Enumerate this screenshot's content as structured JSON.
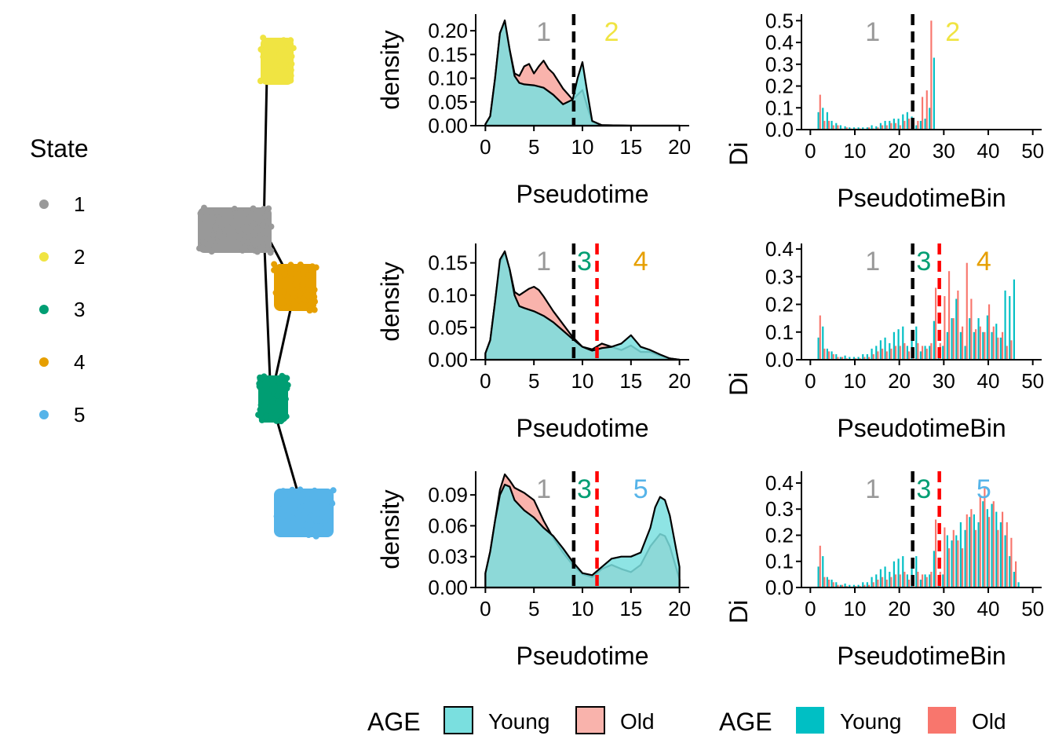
{
  "colors": {
    "young_fill": "#7ADFDF",
    "old_fill": "#F9B3AC",
    "young_bar": "#00BFC4",
    "old_bar": "#F8766D",
    "state_1": "#999999",
    "state_2": "#F0E442",
    "state_3": "#009E73",
    "state_4": "#E69F00",
    "state_5": "#56B4E9",
    "cut_black": "#000000",
    "cut_red": "#FF0000"
  },
  "state_legend": {
    "title": "State",
    "items": [
      {
        "label": "1",
        "color": "#999999"
      },
      {
        "label": "2",
        "color": "#F0E442"
      },
      {
        "label": "3",
        "color": "#009E73"
      },
      {
        "label": "4",
        "color": "#E69F00"
      },
      {
        "label": "5",
        "color": "#56B4E9"
      }
    ]
  },
  "density_legend": {
    "title": "AGE",
    "items": [
      "Young",
      "Old"
    ]
  },
  "bar_legend": {
    "title": "AGE",
    "items": [
      "Young",
      "Old"
    ]
  },
  "chart_data": [
    {
      "type": "scatter",
      "description": "trajectory tree of cells coloured by State",
      "legend_title": "State",
      "states": [
        "1",
        "2",
        "3",
        "4",
        "5"
      ],
      "legend_position": "left"
    },
    {
      "type": "area",
      "xlabel": "Pseudotime",
      "ylabel": "density",
      "xlim": [
        -1,
        21
      ],
      "ylim": [
        0,
        0.235
      ],
      "xticks": [
        0,
        5,
        10,
        15,
        20
      ],
      "yticks": [
        0,
        0.05,
        0.1,
        0.15,
        0.2
      ],
      "ytick_labels": [
        "0.00",
        "0.05",
        "0.10",
        "0.15",
        "0.20"
      ],
      "vlines": [
        {
          "x": 9.1,
          "color": "black"
        }
      ],
      "region_labels": [
        {
          "text": "1",
          "x": 6,
          "color": "#999999"
        },
        {
          "text": "2",
          "x": 13,
          "color": "#F0E442"
        }
      ],
      "series": [
        {
          "name": "Young",
          "x": [
            0,
            0.5,
            1,
            1.5,
            2,
            2.5,
            3,
            3.5,
            4,
            5,
            6,
            7,
            8,
            9,
            9.5,
            10,
            10.5,
            11,
            12,
            15,
            20
          ],
          "y": [
            0.003,
            0.02,
            0.1,
            0.195,
            0.222,
            0.16,
            0.105,
            0.09,
            0.087,
            0.085,
            0.08,
            0.065,
            0.045,
            0.055,
            0.1,
            0.134,
            0.07,
            0.01,
            0.001,
            0,
            0
          ]
        },
        {
          "name": "Old",
          "x": [
            0,
            0.5,
            1,
            1.5,
            2,
            2.5,
            3,
            3.5,
            4,
            4.5,
            5,
            5.5,
            6,
            6.5,
            7,
            8,
            9,
            9.5,
            10,
            10.5,
            11,
            12,
            15,
            20
          ],
          "y": [
            0.003,
            0.02,
            0.1,
            0.195,
            0.218,
            0.16,
            0.11,
            0.105,
            0.125,
            0.13,
            0.11,
            0.125,
            0.137,
            0.12,
            0.11,
            0.078,
            0.055,
            0.065,
            0.075,
            0.04,
            0.008,
            0.001,
            0,
            0
          ]
        }
      ]
    },
    {
      "type": "area",
      "xlabel": "Pseudotime",
      "ylabel": "density",
      "xlim": [
        -1,
        21
      ],
      "ylim": [
        0,
        0.18
      ],
      "xticks": [
        0,
        5,
        10,
        15,
        20
      ],
      "yticks": [
        0,
        0.05,
        0.1,
        0.15
      ],
      "ytick_labels": [
        "0.00",
        "0.05",
        "0.10",
        "0.15"
      ],
      "vlines": [
        {
          "x": 9.1,
          "color": "black"
        },
        {
          "x": 11.5,
          "color": "red"
        }
      ],
      "region_labels": [
        {
          "text": "1",
          "x": 6,
          "color": "#999999"
        },
        {
          "text": "3",
          "x": 10.2,
          "color": "#009E73"
        },
        {
          "text": "4",
          "x": 16,
          "color": "#E69F00"
        }
      ],
      "series": [
        {
          "name": "Young",
          "x": [
            0,
            0.5,
            1,
            1.5,
            2,
            2.5,
            3,
            3.5,
            4,
            5,
            6,
            7,
            8,
            9,
            10,
            11,
            12,
            13,
            14,
            15,
            16,
            17,
            18,
            19,
            20
          ],
          "y": [
            0.01,
            0.03,
            0.09,
            0.155,
            0.168,
            0.14,
            0.1,
            0.083,
            0.08,
            0.075,
            0.068,
            0.058,
            0.045,
            0.032,
            0.02,
            0.014,
            0.018,
            0.02,
            0.025,
            0.038,
            0.02,
            0.015,
            0.008,
            0.002,
            0
          ]
        },
        {
          "name": "Old",
          "x": [
            0,
            0.5,
            1,
            1.5,
            2,
            2.5,
            3,
            3.5,
            4,
            4.5,
            5,
            5.5,
            6,
            7,
            8,
            9,
            10,
            11,
            12,
            13,
            14,
            15,
            16,
            17,
            18,
            19,
            20
          ],
          "y": [
            0.01,
            0.03,
            0.09,
            0.15,
            0.165,
            0.14,
            0.105,
            0.1,
            0.105,
            0.11,
            0.113,
            0.108,
            0.098,
            0.075,
            0.055,
            0.035,
            0.02,
            0.016,
            0.025,
            0.02,
            0.015,
            0.022,
            0.012,
            0.012,
            0.006,
            0.002,
            0
          ]
        }
      ]
    },
    {
      "type": "area",
      "xlabel": "Pseudotime",
      "ylabel": "density",
      "xlim": [
        -1,
        21
      ],
      "ylim": [
        0,
        0.113
      ],
      "xticks": [
        0,
        5,
        10,
        15,
        20
      ],
      "yticks": [
        0,
        0.03,
        0.06,
        0.09
      ],
      "ytick_labels": [
        "0.00",
        "0.03",
        "0.06",
        "0.09"
      ],
      "vlines": [
        {
          "x": 9.1,
          "color": "black"
        },
        {
          "x": 11.5,
          "color": "red"
        }
      ],
      "region_labels": [
        {
          "text": "1",
          "x": 6,
          "color": "#999999"
        },
        {
          "text": "3",
          "x": 10.2,
          "color": "#009E73"
        },
        {
          "text": "5",
          "x": 16,
          "color": "#56B4E9"
        }
      ],
      "series": [
        {
          "name": "Young",
          "x": [
            0,
            0.5,
            1,
            1.5,
            2,
            2.5,
            3,
            4,
            5,
            6,
            7,
            8,
            9,
            10,
            11,
            12,
            13,
            14,
            15,
            16,
            17,
            17.5,
            18,
            18.5,
            19,
            20
          ],
          "y": [
            0.014,
            0.035,
            0.065,
            0.09,
            0.1,
            0.098,
            0.085,
            0.075,
            0.068,
            0.058,
            0.05,
            0.038,
            0.025,
            0.014,
            0.012,
            0.02,
            0.028,
            0.03,
            0.03,
            0.034,
            0.058,
            0.078,
            0.088,
            0.085,
            0.07,
            0.02
          ]
        },
        {
          "name": "Old",
          "x": [
            0,
            0.5,
            1,
            1.5,
            2,
            2.5,
            3,
            4,
            5,
            6,
            7,
            8,
            9,
            10,
            11,
            12,
            13,
            14,
            15,
            16,
            17,
            18,
            18.5,
            19,
            20
          ],
          "y": [
            0.014,
            0.035,
            0.065,
            0.095,
            0.11,
            0.104,
            0.097,
            0.092,
            0.085,
            0.065,
            0.048,
            0.034,
            0.022,
            0.013,
            0.01,
            0.018,
            0.022,
            0.018,
            0.015,
            0.022,
            0.04,
            0.052,
            0.05,
            0.04,
            0.008
          ]
        }
      ]
    },
    {
      "type": "bar",
      "xlabel": "PseudotimeBin",
      "ylabel": "Div/cells in bin",
      "xlim": [
        -2,
        52
      ],
      "ylim": [
        0,
        0.53
      ],
      "xticks": [
        0,
        10,
        20,
        30,
        40,
        50
      ],
      "yticks": [
        0,
        0.1,
        0.2,
        0.3,
        0.4,
        0.5
      ],
      "ytick_labels": [
        "0.0",
        "0.1",
        "0.2",
        "0.3",
        "0.4",
        "0.5"
      ],
      "vlines": [
        {
          "x": 23,
          "color": "black"
        }
      ],
      "region_labels": [
        {
          "text": "1",
          "x": 14,
          "color": "#999999"
        },
        {
          "text": "2",
          "x": 32,
          "color": "#F0E442"
        }
      ],
      "bins": [
        2,
        3,
        4,
        5,
        6,
        7,
        8,
        9,
        10,
        11,
        12,
        13,
        14,
        15,
        16,
        17,
        18,
        19,
        20,
        21,
        22,
        23,
        24,
        25,
        26,
        27,
        28
      ],
      "series": [
        {
          "name": "Young",
          "values": [
            0.08,
            0.1,
            0.08,
            0.04,
            0.03,
            0.02,
            0.015,
            0.01,
            0.01,
            0.01,
            0.01,
            0.01,
            0.02,
            0.015,
            0.03,
            0.04,
            0.04,
            0.05,
            0.05,
            0.07,
            0.08,
            0.06,
            0.02,
            0.04,
            0.05,
            0.1,
            0.33
          ]
        },
        {
          "name": "Old",
          "values": [
            0.16,
            0.04,
            0.04,
            0.02,
            0.02,
            0.005,
            0.01,
            0.005,
            0.005,
            0.005,
            0,
            0.01,
            0.005,
            0.01,
            0.02,
            0.02,
            0.03,
            0.03,
            0.02,
            0.04,
            0.05,
            0.03,
            0.04,
            0.15,
            0.18,
            0.5,
            0
          ]
        }
      ]
    },
    {
      "type": "bar",
      "xlabel": "PseudotimeBin",
      "ylabel": "Div/cells in bin",
      "xlim": [
        -2,
        52
      ],
      "ylim": [
        0,
        0.42
      ],
      "xticks": [
        0,
        10,
        20,
        30,
        40,
        50
      ],
      "yticks": [
        0,
        0.1,
        0.2,
        0.3,
        0.4
      ],
      "ytick_labels": [
        "0.0",
        "0.1",
        "0.2",
        "0.3",
        "0.4"
      ],
      "vlines": [
        {
          "x": 23,
          "color": "black"
        },
        {
          "x": 29,
          "color": "red"
        }
      ],
      "region_labels": [
        {
          "text": "1",
          "x": 14,
          "color": "#999999"
        },
        {
          "text": "3",
          "x": 25.5,
          "color": "#009E73"
        },
        {
          "text": "4",
          "x": 39,
          "color": "#E69F00"
        }
      ],
      "bins": [
        2,
        3,
        4,
        5,
        6,
        7,
        8,
        9,
        10,
        11,
        12,
        13,
        14,
        15,
        16,
        17,
        18,
        19,
        20,
        21,
        22,
        23,
        24,
        25,
        26,
        27,
        28,
        29,
        30,
        31,
        32,
        33,
        34,
        35,
        36,
        37,
        38,
        39,
        40,
        41,
        42,
        43,
        44,
        45,
        46
      ],
      "series": [
        {
          "name": "Young",
          "values": [
            0.08,
            0.12,
            0.04,
            0.03,
            0.02,
            0.01,
            0.015,
            0.01,
            0.01,
            0.01,
            0.02,
            0.02,
            0.04,
            0.05,
            0.07,
            0.08,
            0.06,
            0.1,
            0.11,
            0.12,
            0.05,
            0.08,
            0.12,
            0.03,
            0.05,
            0.05,
            0.14,
            0.04,
            0.05,
            0.1,
            0.15,
            0.22,
            0.1,
            0.05,
            0.15,
            0.1,
            0.15,
            0.1,
            0.16,
            0.1,
            0.13,
            0.08,
            0.25,
            0.23,
            0.29
          ]
        },
        {
          "name": "Old",
          "values": [
            0.16,
            0.04,
            0.03,
            0.02,
            0.01,
            0.01,
            0.005,
            0,
            0.005,
            0.005,
            0.01,
            0.01,
            0.02,
            0.03,
            0.04,
            0.03,
            0.04,
            0.05,
            0.05,
            0.06,
            0.03,
            0.04,
            0.06,
            0.05,
            0.04,
            0.06,
            0.26,
            0.06,
            0.23,
            0.32,
            0.15,
            0.25,
            0.12,
            0.35,
            0.22,
            0.11,
            0.12,
            0.1,
            0.2,
            0.12,
            0.08,
            0.1,
            0.05,
            0.07,
            0
          ]
        }
      ]
    },
    {
      "type": "bar",
      "xlabel": "PseudotimeBin",
      "ylabel": "Div/cells in bin",
      "xlim": [
        -2,
        52
      ],
      "ylim": [
        0,
        0.445
      ],
      "xticks": [
        0,
        10,
        20,
        30,
        40,
        50
      ],
      "yticks": [
        0,
        0.1,
        0.2,
        0.3,
        0.4
      ],
      "ytick_labels": [
        "0.0",
        "0.1",
        "0.2",
        "0.3",
        "0.4"
      ],
      "vlines": [
        {
          "x": 23,
          "color": "black"
        },
        {
          "x": 29,
          "color": "red"
        }
      ],
      "region_labels": [
        {
          "text": "1",
          "x": 14,
          "color": "#999999"
        },
        {
          "text": "3",
          "x": 25.5,
          "color": "#009E73"
        },
        {
          "text": "5",
          "x": 39,
          "color": "#56B4E9"
        }
      ],
      "bins": [
        2,
        3,
        4,
        5,
        6,
        7,
        8,
        9,
        10,
        11,
        12,
        13,
        14,
        15,
        16,
        17,
        18,
        19,
        20,
        21,
        22,
        23,
        24,
        25,
        26,
        27,
        28,
        29,
        30,
        31,
        32,
        33,
        34,
        35,
        36,
        37,
        38,
        39,
        40,
        41,
        42,
        43,
        44,
        45,
        46,
        47
      ],
      "series": [
        {
          "name": "Young",
          "values": [
            0.08,
            0.12,
            0.04,
            0.03,
            0.02,
            0.01,
            0.015,
            0.01,
            0.01,
            0.01,
            0.02,
            0.02,
            0.04,
            0.05,
            0.07,
            0.08,
            0.06,
            0.1,
            0.11,
            0.12,
            0.05,
            0.08,
            0.12,
            0.03,
            0.05,
            0.05,
            0.14,
            0.04,
            0.05,
            0.2,
            0.18,
            0.2,
            0.25,
            0.22,
            0.27,
            0.28,
            0.25,
            0.33,
            0.3,
            0.32,
            0.29,
            0.25,
            0.2,
            0.12,
            0.06,
            0.02
          ]
        },
        {
          "name": "Old",
          "values": [
            0.16,
            0.04,
            0.03,
            0.02,
            0.01,
            0.01,
            0.005,
            0,
            0.005,
            0.005,
            0.01,
            0.01,
            0.02,
            0.03,
            0.04,
            0.03,
            0.04,
            0.05,
            0.05,
            0.06,
            0.03,
            0.04,
            0.06,
            0.05,
            0.04,
            0.06,
            0.26,
            0.06,
            0.23,
            0.15,
            0.22,
            0.18,
            0.15,
            0.28,
            0.3,
            0.22,
            0.35,
            0.38,
            0.27,
            0.33,
            0.22,
            0.29,
            0.25,
            0.19,
            0.1,
            0
          ]
        }
      ]
    }
  ]
}
